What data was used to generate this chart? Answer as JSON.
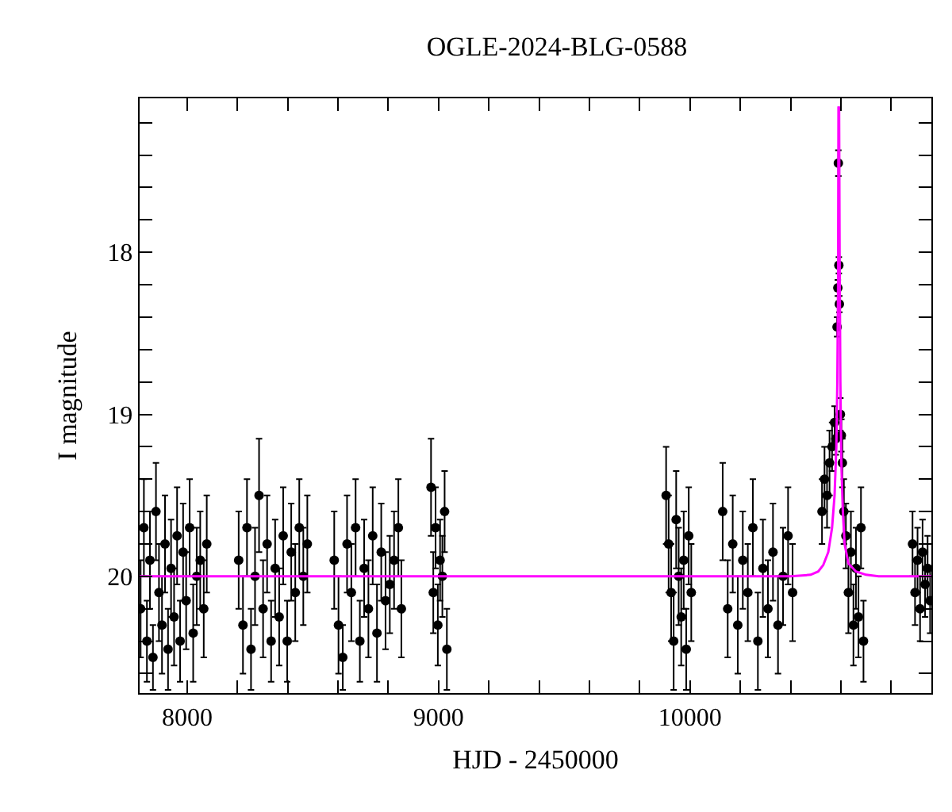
{
  "chart_data": {
    "type": "scatter",
    "title": "OGLE-2024-BLG-0588",
    "xlabel": "HJD - 2450000",
    "ylabel": "I magnitude",
    "xlim": [
      7811,
      10960
    ],
    "ylim": [
      20.72,
      17.05
    ],
    "xticks": [
      8000,
      {
        "value": 8200,
        "label": null
      },
      {
        "value": 8400,
        "label": null
      },
      {
        "value": 8600,
        "label": null
      },
      {
        "value": 8800,
        "label": null
      },
      9000,
      {
        "value": 9200,
        "label": null
      },
      {
        "value": 9400,
        "label": null
      },
      {
        "value": 9600,
        "label": null
      },
      {
        "value": 9800,
        "label": null
      },
      10000,
      {
        "value": 10200,
        "label": null
      },
      {
        "value": 10400,
        "label": null
      },
      {
        "value": 10600,
        "label": null
      },
      {
        "value": 10800,
        "label": null
      }
    ],
    "yticks": [
      {
        "value": 17.2,
        "label": null
      },
      {
        "value": 17.4,
        "label": null
      },
      {
        "value": 17.6,
        "label": null
      },
      {
        "value": 17.8,
        "label": null
      },
      18,
      {
        "value": 18.2,
        "label": null
      },
      {
        "value": 18.4,
        "label": null
      },
      {
        "value": 18.6,
        "label": null
      },
      {
        "value": 18.8,
        "label": null
      },
      19,
      {
        "value": 19.2,
        "label": null
      },
      {
        "value": 19.4,
        "label": null
      },
      {
        "value": 19.6,
        "label": null
      },
      {
        "value": 19.8,
        "label": null
      },
      20,
      {
        "value": 20.2,
        "label": null
      },
      {
        "value": 20.4,
        "label": null
      },
      {
        "value": 20.6,
        "label": null
      }
    ],
    "grid": false,
    "marker": "circle",
    "series": [
      {
        "color": "#000000",
        "x": [
          7815,
          7828,
          7840,
          7852,
          7864,
          7876,
          7888,
          7900,
          7912,
          7924,
          7936,
          7948,
          7960,
          7972,
          7984,
          7996,
          8010,
          8024,
          8038,
          8052,
          8066,
          8078,
          8205,
          8222,
          8238,
          8254,
          8270,
          8286,
          8302,
          8318,
          8334,
          8350,
          8366,
          8382,
          8398,
          8414,
          8430,
          8446,
          8462,
          8478,
          8585,
          8602,
          8619,
          8636,
          8653,
          8670,
          8687,
          8704,
          8721,
          8738,
          8755,
          8772,
          8789,
          8806,
          8823,
          8840,
          8852,
          8970,
          8988,
          9006,
          8979,
          8997,
          9033,
          9024,
          9015,
          9905,
          9915,
          9925,
          9935,
          9945,
          9955,
          9965,
          9975,
          9985,
          9995,
          10005,
          10130,
          10150,
          10170,
          10190,
          10210,
          10230,
          10250,
          10270,
          10290,
          10310,
          10330,
          10350,
          10370,
          10390,
          10408,
          10525,
          10535,
          10545,
          10555,
          10565,
          10575,
          10580,
          10585,
          10588,
          10590,
          10592,
          10594,
          10598,
          10602,
          10606,
          10612,
          10620,
          10630,
          10640,
          10650,
          10660,
          10670,
          10680,
          10690,
          10885,
          10895,
          10905,
          10915,
          10925,
          10935,
          10945,
          10955
        ],
        "values": [
          20.2,
          19.7,
          20.4,
          19.9,
          20.5,
          19.6,
          20.1,
          20.3,
          19.8,
          20.45,
          19.95,
          20.25,
          19.75,
          20.4,
          19.85,
          20.15,
          19.7,
          20.35,
          20.0,
          19.9,
          20.2,
          19.8,
          19.9,
          20.3,
          19.7,
          20.45,
          20.0,
          19.5,
          20.2,
          19.8,
          20.4,
          19.95,
          20.25,
          19.75,
          20.4,
          19.85,
          20.1,
          19.7,
          20.0,
          19.8,
          19.9,
          20.3,
          20.5,
          19.8,
          20.1,
          19.7,
          20.4,
          19.95,
          20.2,
          19.75,
          20.35,
          19.85,
          20.15,
          20.05,
          19.9,
          19.7,
          20.2,
          19.45,
          19.7,
          19.9,
          20.1,
          20.3,
          20.45,
          19.6,
          20.0,
          19.5,
          19.8,
          20.1,
          20.4,
          19.65,
          20.0,
          20.25,
          19.9,
          20.45,
          19.75,
          20.1,
          19.6,
          20.2,
          19.8,
          20.3,
          19.9,
          20.1,
          19.7,
          20.4,
          19.95,
          20.2,
          19.85,
          20.3,
          20.0,
          19.75,
          20.1,
          19.6,
          19.4,
          19.5,
          19.3,
          19.2,
          19.05,
          19.15,
          18.46,
          18.22,
          17.45,
          18.08,
          18.32,
          19.0,
          19.13,
          19.3,
          19.6,
          19.75,
          20.1,
          19.85,
          20.3,
          19.95,
          20.25,
          19.7,
          20.4,
          19.8,
          20.1,
          19.9,
          20.2,
          19.85,
          20.05,
          19.95,
          20.15
        ],
        "errors": [
          0.3,
          0.3,
          0.25,
          0.3,
          0.2,
          0.3,
          0.3,
          0.3,
          0.3,
          0.25,
          0.3,
          0.3,
          0.3,
          0.25,
          0.3,
          0.3,
          0.3,
          0.3,
          0.3,
          0.3,
          0.3,
          0.3,
          0.3,
          0.3,
          0.3,
          0.25,
          0.3,
          0.35,
          0.3,
          0.3,
          0.25,
          0.3,
          0.3,
          0.3,
          0.25,
          0.3,
          0.3,
          0.3,
          0.3,
          0.3,
          0.3,
          0.3,
          0.2,
          0.3,
          0.3,
          0.3,
          0.25,
          0.3,
          0.3,
          0.3,
          0.3,
          0.3,
          0.3,
          0.3,
          0.3,
          0.3,
          0.3,
          0.3,
          0.25,
          0.25,
          0.25,
          0.25,
          0.25,
          0.25,
          0.25,
          0.3,
          0.3,
          0.3,
          0.3,
          0.3,
          0.3,
          0.3,
          0.3,
          0.25,
          0.3,
          0.3,
          0.3,
          0.3,
          0.3,
          0.3,
          0.3,
          0.3,
          0.3,
          0.3,
          0.3,
          0.3,
          0.3,
          0.3,
          0.3,
          0.3,
          0.3,
          0.2,
          0.2,
          0.2,
          0.2,
          0.15,
          0.1,
          0.1,
          0.06,
          0.05,
          0.08,
          0.05,
          0.05,
          0.1,
          0.1,
          0.15,
          0.2,
          0.2,
          0.25,
          0.25,
          0.25,
          0.25,
          0.25,
          0.25,
          0.25,
          0.2,
          0.2,
          0.2,
          0.2,
          0.2,
          0.2,
          0.2,
          0.2
        ]
      },
      {
        "type": "line",
        "color": "#ff00ff",
        "marker": "none",
        "x": [
          7811,
          10400,
          10480,
          10510,
          10530,
          10550,
          10565,
          10575,
          10582,
          10586,
          10589,
          10590.5,
          10592,
          10593,
          10595,
          10598,
          10602,
          10608,
          10615,
          10630,
          10660,
          10700,
          10750,
          10960
        ],
        "values": [
          20.0,
          20.0,
          19.99,
          19.97,
          19.93,
          19.85,
          19.7,
          19.5,
          19.2,
          18.8,
          18.2,
          17.1,
          null,
          17.1,
          18.0,
          18.8,
          19.3,
          19.6,
          19.8,
          19.92,
          19.97,
          19.99,
          20.0,
          20.0
        ]
      }
    ]
  }
}
